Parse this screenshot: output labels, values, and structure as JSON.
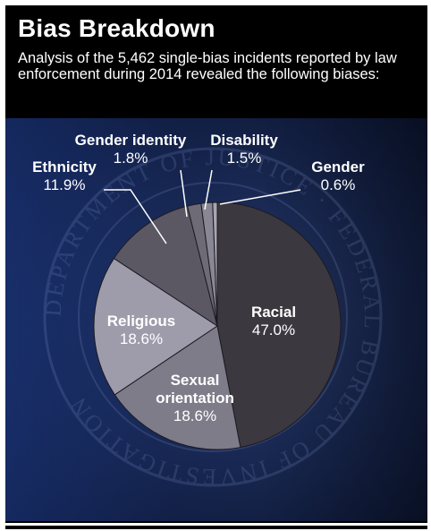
{
  "title": "Bias Breakdown",
  "subtitle": "Analysis of the 5,462 single-bias incidents reported by law enforcement during 2014 revealed the following biases:",
  "seal_text": "DEPARTMENT OF JUSTICE · FEDERAL BUREAU OF INVESTIGATION",
  "chart_data": {
    "type": "pie",
    "title": "Bias Breakdown",
    "slices": [
      {
        "label": "Racial",
        "value": 47.0,
        "value_label": "47.0%",
        "color": "#3c383f"
      },
      {
        "label": "Sexual orientation",
        "value": 18.6,
        "value_label": "18.6%",
        "color": "#7f7c89"
      },
      {
        "label": "Religious",
        "value": 18.6,
        "value_label": "18.6%",
        "color": "#9e9cab"
      },
      {
        "label": "Ethnicity",
        "value": 11.9,
        "value_label": "11.9%",
        "color": "#5b5864"
      },
      {
        "label": "Gender identity",
        "value": 1.8,
        "value_label": "1.8%",
        "color": "#6e6b77"
      },
      {
        "label": "Disability",
        "value": 1.5,
        "value_label": "1.5%",
        "color": "#8a8794"
      },
      {
        "label": "Gender",
        "value": 0.6,
        "value_label": "0.6%",
        "color": "#a8a6b2"
      }
    ]
  }
}
